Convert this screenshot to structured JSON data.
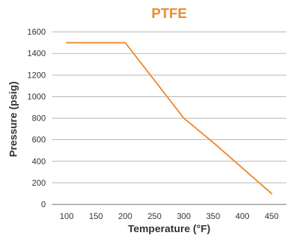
{
  "chart_data": {
    "type": "line",
    "title": "PTFE",
    "xlabel": "Temperature (°F)",
    "ylabel": "Pressure (psig)",
    "x_ticks": [
      100,
      150,
      200,
      250,
      300,
      350,
      400,
      450
    ],
    "y_ticks": [
      0,
      200,
      400,
      600,
      800,
      1000,
      1200,
      1400,
      1600
    ],
    "xlim": [
      75,
      475
    ],
    "ylim": [
      0,
      1600
    ],
    "grid": "horizontal",
    "series": [
      {
        "x": [
          100,
          200,
          300,
          350,
          450
        ],
        "y": [
          1500,
          1500,
          800,
          575,
          100
        ]
      }
    ]
  },
  "colors": {
    "accent": "#ec8a2f",
    "grid": "#9a9a9a",
    "axis": "#666666",
    "text": "#333333"
  }
}
